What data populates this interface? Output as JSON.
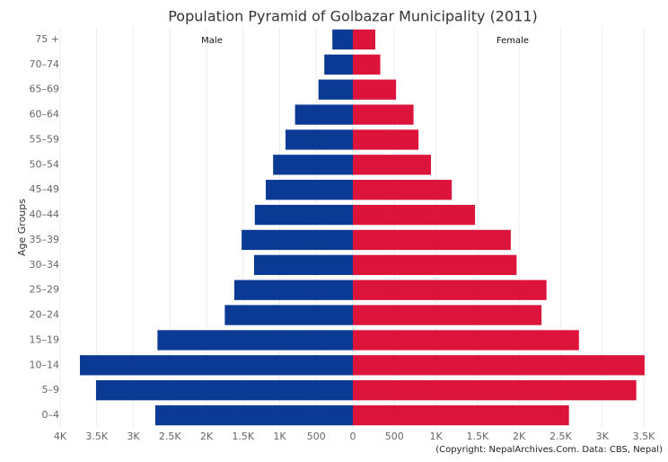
{
  "chart_data": {
    "type": "pyramid",
    "title": "Population Pyramid of Golbazar Municipality (2011)",
    "y_label": "Age Groups",
    "source": "(Copyright: NepalArchives.Com. Data: CBS, Nepal)",
    "categories": [
      "75 +",
      "70–74",
      "65–69",
      "60–64",
      "55–59",
      "50–54",
      "45–49",
      "40–44",
      "35–39",
      "30–34",
      "25–29",
      "20–24",
      "15–19",
      "10–14",
      "5–9",
      "0–4"
    ],
    "grid": true,
    "series": [
      {
        "name": "Male",
        "color": "#0a3a94",
        "values": [
          280,
          390,
          470,
          790,
          920,
          1090,
          1190,
          1340,
          1520,
          1350,
          1620,
          1750,
          2670,
          3730,
          3510,
          2700
        ],
        "xlim": [
          0,
          4000
        ],
        "xticks": [
          {
            "value": 4000,
            "label": "4K"
          },
          {
            "value": 3500,
            "label": "3.5K"
          },
          {
            "value": 3000,
            "label": "3K"
          },
          {
            "value": 2500,
            "label": "2.5K"
          },
          {
            "value": 2000,
            "label": "2K"
          },
          {
            "value": 1500,
            "label": "1.5K"
          },
          {
            "value": 1000,
            "label": "1K"
          },
          500,
          0
        ]
      },
      {
        "name": "Female",
        "color": "#dc143c",
        "values": [
          270,
          330,
          520,
          730,
          790,
          940,
          1190,
          1470,
          1900,
          1970,
          2330,
          2270,
          2720,
          3510,
          3410,
          2600
        ],
        "xlim": [
          0,
          3500
        ],
        "xticks": [
          500,
          {
            "value": 1000,
            "label": "1K"
          },
          {
            "value": 1500,
            "label": "1.5K"
          },
          {
            "value": 2000,
            "label": "2K"
          },
          {
            "value": 2500,
            "label": "2.5K"
          },
          {
            "value": 3000,
            "label": "3K"
          },
          {
            "value": 3500,
            "label": "3.5K"
          }
        ]
      }
    ]
  }
}
